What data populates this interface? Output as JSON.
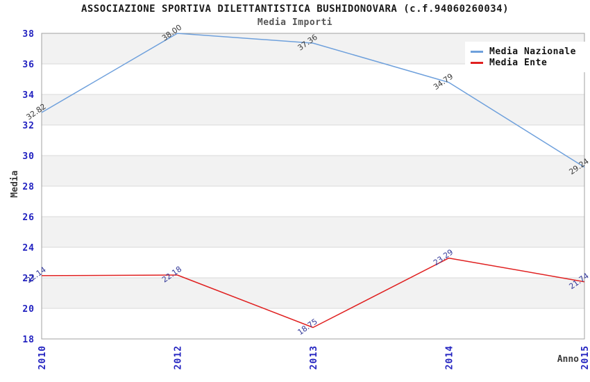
{
  "header": {
    "title": "ASSOCIAZIONE SPORTIVA DILETTANTISTICA BUSHIDONOVARA (c.f.94060260034)",
    "subtitle": "Media Importi"
  },
  "axes": {
    "y_title": "Media",
    "x_title": "Anno"
  },
  "chart_data": {
    "type": "line",
    "title": "ASSOCIAZIONE SPORTIVA DILETTANTISTICA BUSHIDONOVARA (c.f.94060260034)",
    "subtitle": "Media Importi",
    "categories": [
      "2010",
      "2012",
      "2013",
      "2014",
      "2015"
    ],
    "series": [
      {
        "name": "Media Nazionale",
        "color": "#6ea0dc",
        "label_color": "#3a3a3a",
        "values": [
          32.82,
          38.0,
          37.36,
          34.79,
          29.24
        ]
      },
      {
        "name": "Media Ente",
        "color": "#e02020",
        "label_color": "#333999",
        "values": [
          22.14,
          22.18,
          18.75,
          23.29,
          21.74
        ]
      }
    ],
    "xlabel": "Anno",
    "ylabel": "Media",
    "ylim": [
      18,
      38
    ],
    "ytick_step": 2,
    "yticks": [
      18,
      20,
      22,
      24,
      26,
      28,
      30,
      32,
      34,
      36,
      38
    ],
    "grid": true,
    "legend_position": "top-right",
    "band_colors": [
      "#f2f2f2",
      "#ffffff"
    ],
    "tick_color": "#2222c0",
    "grid_color": "#d9d9d9",
    "border_color": "#a0a0a0",
    "value_label_rotation": -35,
    "x_label_rotation": -90
  }
}
